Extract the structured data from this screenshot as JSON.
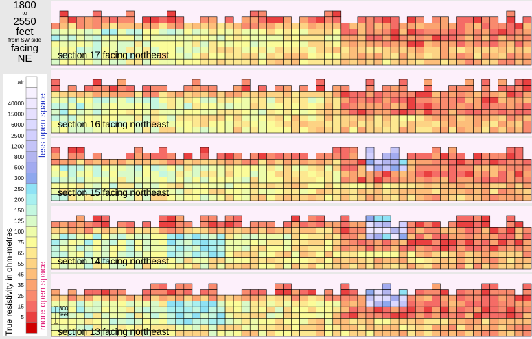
{
  "title": {
    "from": "1800",
    "to_word": "to",
    "to": "2550",
    "unit": "feet",
    "ref": "from SW side",
    "facing_word": "facing",
    "direction": "NE"
  },
  "legend": {
    "ylabel": "True resistivity in ohm-metres",
    "less_label": "less open space",
    "more_label": "more open space",
    "levels": [
      {
        "label": "air",
        "color": "#ffffff"
      },
      {
        "label": "",
        "color": "#f7f1ff"
      },
      {
        "label": "40000",
        "color": "#efe8ff"
      },
      {
        "label": "15000",
        "color": "#e6e0ff"
      },
      {
        "label": "6000",
        "color": "#dcdaff"
      },
      {
        "label": "2500",
        "color": "#d2d0ff"
      },
      {
        "label": "1200",
        "color": "#c4c4f8"
      },
      {
        "label": "800",
        "color": "#b3b6f0"
      },
      {
        "label": "500",
        "color": "#a2abf0"
      },
      {
        "label": "300",
        "color": "#8ea8ee"
      },
      {
        "label": "250",
        "color": "#8fe2f5"
      },
      {
        "label": "200",
        "color": "#a8f0f0"
      },
      {
        "label": "150",
        "color": "#c4f7e0"
      },
      {
        "label": "125",
        "color": "#d9fac8"
      },
      {
        "label": "100",
        "color": "#eefcaa"
      },
      {
        "label": "75",
        "color": "#fbfc99"
      },
      {
        "label": "65",
        "color": "#fde890"
      },
      {
        "label": "55",
        "color": "#fdd384"
      },
      {
        "label": "45",
        "color": "#fdbe7a"
      },
      {
        "label": "35",
        "color": "#fba370"
      },
      {
        "label": "25",
        "color": "#f98a6e"
      },
      {
        "label": "15",
        "color": "#f56c66"
      },
      {
        "label": "5",
        "color": "#ea4040"
      },
      {
        "label": "",
        "color": "#d00000"
      }
    ]
  },
  "scale_bar": {
    "value": "300",
    "unit": "feet"
  },
  "sections": [
    {
      "title": "section 17 facing northeast",
      "seed": 17
    },
    {
      "title": "section 16 facing northeast",
      "seed": 16
    },
    {
      "title": "section 15 facing northeast",
      "seed": 15
    },
    {
      "title": "section 14 facing northeast",
      "seed": 14
    },
    {
      "title": "section 13 facing northeast",
      "seed": 13
    }
  ]
}
